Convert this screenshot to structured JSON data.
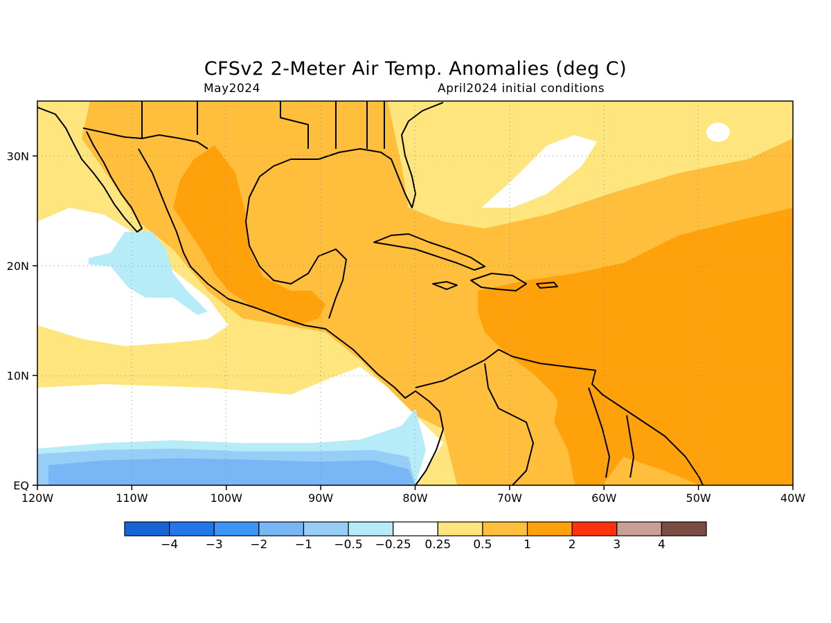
{
  "title": "CFSv2 2-Meter Air Temp. Anomalies (deg C)",
  "subtitle_left": "May2024",
  "subtitle_right": "April2024 initial conditions",
  "map": {
    "projection": "lat-lon",
    "lon_range": [
      -120,
      -40
    ],
    "lat_range": [
      0,
      35
    ],
    "lon_ticks": [
      {
        "value": -120,
        "label": "120W"
      },
      {
        "value": -110,
        "label": "110W"
      },
      {
        "value": -100,
        "label": "100W"
      },
      {
        "value": -90,
        "label": "90W"
      },
      {
        "value": -80,
        "label": "80W"
      },
      {
        "value": -70,
        "label": "70W"
      },
      {
        "value": -60,
        "label": "60W"
      },
      {
        "value": -50,
        "label": "50W"
      },
      {
        "value": -40,
        "label": "40W"
      }
    ],
    "lat_ticks": [
      {
        "value": 30,
        "label": "30N"
      },
      {
        "value": 20,
        "label": "20N"
      },
      {
        "value": 10,
        "label": "10N"
      },
      {
        "value": 0,
        "label": "EQ"
      }
    ],
    "grid": "dotted",
    "region_shown": "Gulf of Mexico, Caribbean, Central America, northern South America, eastern Pacific"
  },
  "colorbar": {
    "bins": [
      {
        "color": "#1764d6"
      },
      {
        "color": "#2477ea"
      },
      {
        "color": "#3b95f4"
      },
      {
        "color": "#78b6f6"
      },
      {
        "color": "#97cef7"
      },
      {
        "color": "#b5ecf8"
      },
      {
        "color": "#ffffff"
      },
      {
        "color": "#ffe57e"
      },
      {
        "color": "#ffbf3c"
      },
      {
        "color": "#ffa10a"
      },
      {
        "color": "#ff3210"
      },
      {
        "color": "#c8a095"
      },
      {
        "color": "#7a4e43"
      }
    ],
    "labels": [
      "−4",
      "−3",
      "−2",
      "−1",
      "−0.5",
      "−0.25",
      "0.25",
      "0.5",
      "1",
      "2",
      "3",
      "4"
    ]
  },
  "colors": {
    "ocean_white": "#ffffff",
    "light_blue": "#b5ecf8",
    "mid_blue": "#97cef7",
    "blue": "#78b6f6",
    "pale_yellow": "#ffe57e",
    "light_orange": "#ffbf3c",
    "orange": "#ffa10a"
  }
}
